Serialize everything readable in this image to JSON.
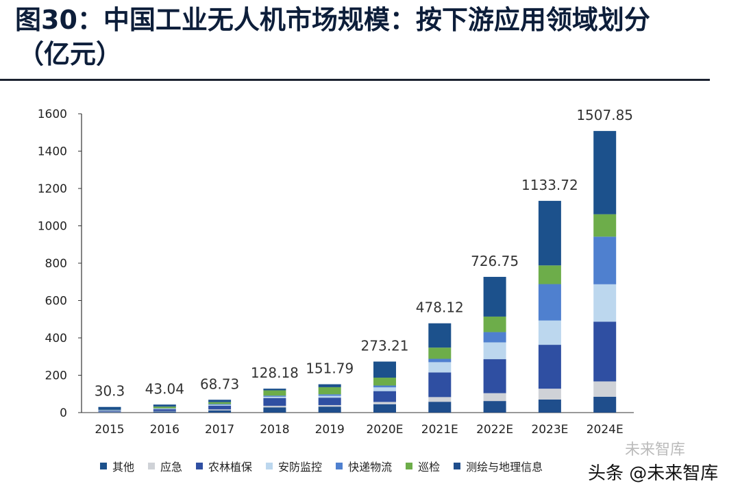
{
  "header": {
    "title_line1": "图30：中国工业无人机市场规模：按下游应用领域划分",
    "title_line2": "（亿元）"
  },
  "watermark": {
    "text": "头条 @未来智库",
    "faded_text": "未来智库"
  },
  "chart_data": {
    "type": "bar",
    "stacked": true,
    "title": "图30：中国工业无人机市场规模：按下游应用领域划分（亿元）",
    "categories": [
      "2015",
      "2016",
      "2017",
      "2018",
      "2019",
      "2020E",
      "2021E",
      "2022E",
      "2023E",
      "2024E"
    ],
    "ylim": [
      0,
      1600
    ],
    "yticks": [
      0,
      200,
      400,
      600,
      800,
      1000,
      1200,
      1400,
      1600
    ],
    "grid": false,
    "legend_position": "bottom",
    "totals": [
      30.3,
      43.04,
      68.73,
      128.18,
      151.79,
      273.21,
      478.12,
      726.75,
      1133.72,
      1507.85
    ],
    "total_labels": [
      "30.3",
      "43.04",
      "68.73",
      "128.18",
      "151.79",
      "273.21",
      "478.12",
      "726.75",
      "1133.72",
      "1507.85"
    ],
    "series": [
      {
        "name": "测绘与地理信息",
        "color": "#1f4e8c",
        "values": [
          3,
          6,
          12,
          28,
          32,
          45,
          58,
          62,
          70,
          85
        ]
      },
      {
        "name": "应急",
        "color": "#cfd2d7",
        "values": [
          2,
          2,
          5,
          8,
          8,
          12,
          25,
          42,
          58,
          82
        ]
      },
      {
        "name": "农林植保",
        "color": "#2f4fa2",
        "values": [
          5,
          10,
          20,
          42,
          40,
          58,
          132,
          182,
          235,
          320
        ]
      },
      {
        "name": "安防监控",
        "color": "#bcd7ee",
        "values": [
          2,
          3,
          5,
          7,
          10,
          20,
          55,
          90,
          130,
          200
        ]
      },
      {
        "name": "快递物流",
        "color": "#4f80cf",
        "values": [
          2,
          2,
          4,
          6,
          8,
          10,
          18,
          55,
          195,
          255
        ]
      },
      {
        "name": "巡检",
        "color": "#6dad4a",
        "values": [
          1,
          9,
          10,
          28,
          38,
          42,
          60,
          83,
          100,
          120
        ]
      },
      {
        "name": "其他",
        "color": "#1c518c",
        "values": [
          15.3,
          11.04,
          12.73,
          9.18,
          15.79,
          86.21,
          130.12,
          212.75,
          345.72,
          445.85
        ]
      }
    ],
    "legend_order": [
      "其他",
      "应急",
      "农林植保",
      "安防监控",
      "快递物流",
      "巡检",
      "测绘与地理信息"
    ]
  }
}
